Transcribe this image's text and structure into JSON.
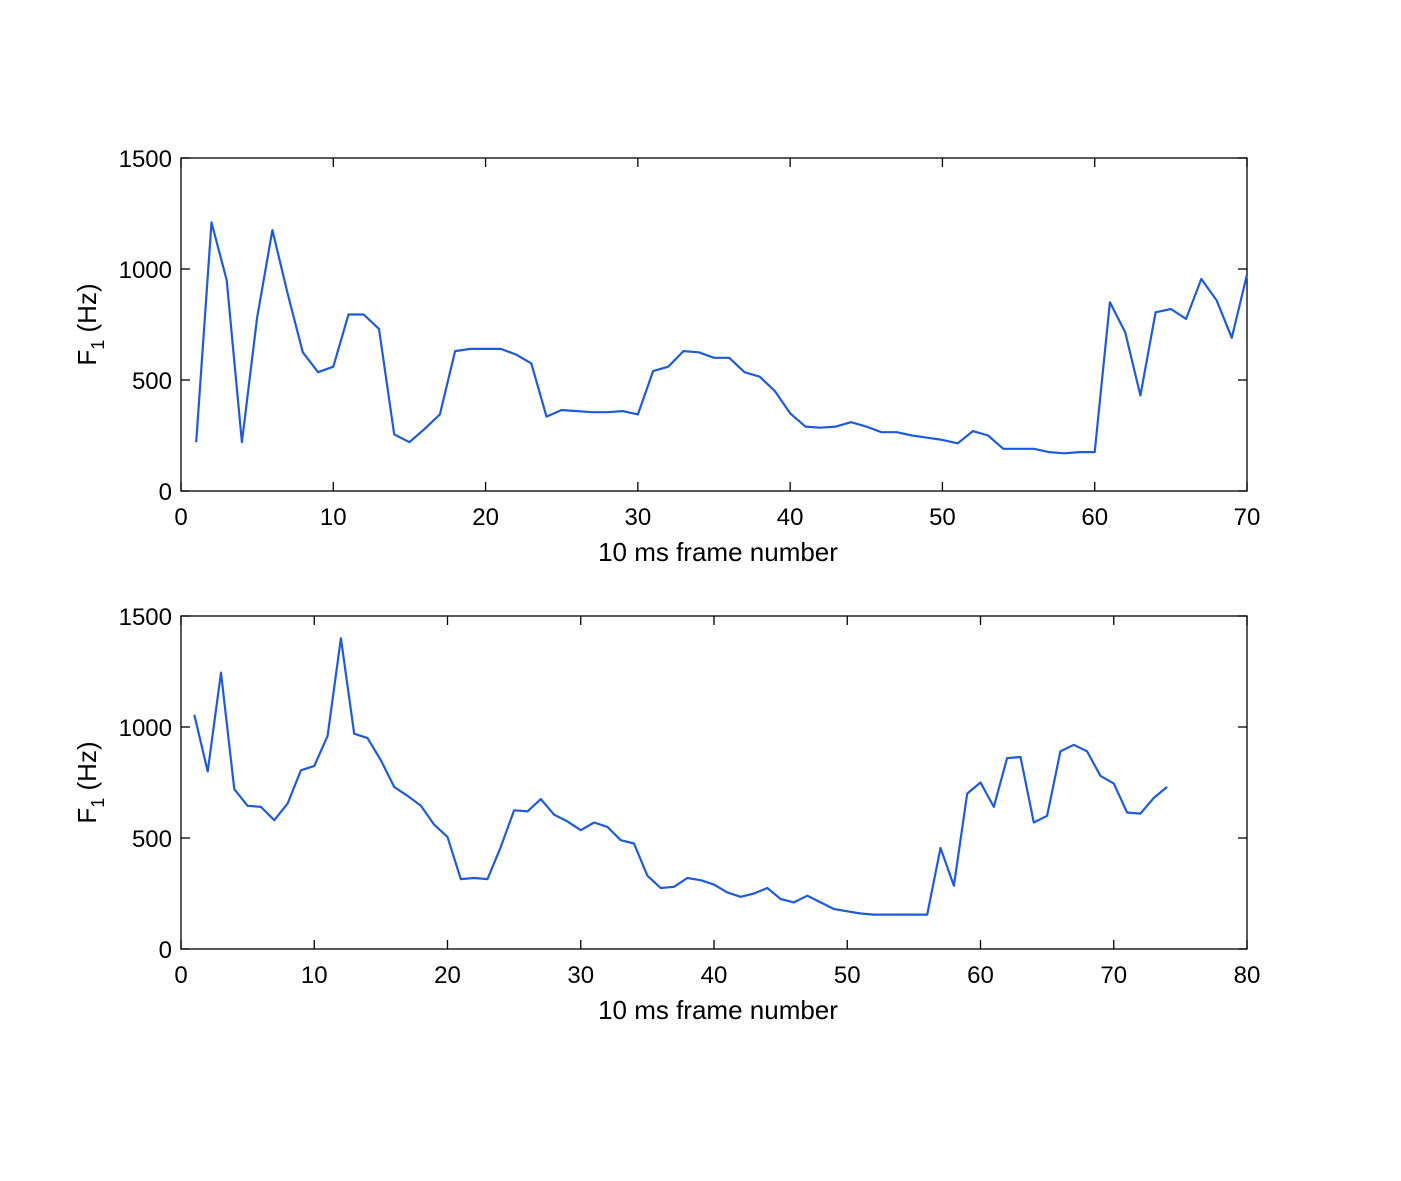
{
  "chart_data": [
    {
      "type": "line",
      "xlabel": "10 ms frame number",
      "ylabel": "F",
      "ylabel_subscript": "1",
      "ylabel_unit": "(Hz)",
      "xlim": [
        0,
        70
      ],
      "ylim": [
        0,
        1500
      ],
      "xticks": [
        0,
        10,
        20,
        30,
        40,
        50,
        60,
        70
      ],
      "yticks": [
        0,
        500,
        1000,
        1500
      ],
      "grid": false,
      "line_color": "#1f5bd6",
      "series": [
        {
          "x": [
            1,
            2,
            3,
            4,
            5,
            6,
            7,
            8,
            9,
            10,
            11,
            12,
            13,
            14,
            15,
            16,
            17,
            18,
            19,
            20,
            21,
            22,
            23,
            24,
            25,
            26,
            27,
            28,
            29,
            30,
            31,
            32,
            33,
            34,
            35,
            36,
            37,
            38,
            39,
            40,
            41,
            42,
            43,
            44,
            45,
            46,
            47,
            48,
            49,
            50,
            51,
            52,
            53,
            54,
            55,
            56,
            57,
            58,
            59,
            60,
            61,
            62,
            63,
            64,
            65,
            66,
            67,
            68,
            69,
            70
          ],
          "values": [
            220,
            1210,
            950,
            220,
            780,
            1175,
            890,
            625,
            535,
            560,
            795,
            795,
            730,
            255,
            220,
            280,
            345,
            630,
            640,
            640,
            640,
            615,
            575,
            335,
            365,
            360,
            355,
            355,
            360,
            345,
            540,
            560,
            630,
            625,
            600,
            600,
            535,
            515,
            450,
            350,
            290,
            285,
            290,
            310,
            290,
            265,
            265,
            250,
            240,
            230,
            215,
            270,
            250,
            190,
            190,
            190,
            175,
            170,
            175,
            175,
            850,
            715,
            430,
            805,
            820,
            775,
            955,
            860,
            690,
            975
          ]
        }
      ]
    },
    {
      "type": "line",
      "xlabel": "10 ms frame number",
      "ylabel": "F",
      "ylabel_subscript": "1",
      "ylabel_unit": "(Hz)",
      "xlim": [
        0,
        80
      ],
      "ylim": [
        0,
        1500
      ],
      "xticks": [
        0,
        10,
        20,
        30,
        40,
        50,
        60,
        70,
        80
      ],
      "yticks": [
        0,
        500,
        1000,
        1500
      ],
      "grid": false,
      "line_color": "#1f5bd6",
      "series": [
        {
          "x": [
            1,
            2,
            3,
            4,
            5,
            6,
            7,
            8,
            9,
            10,
            11,
            12,
            13,
            14,
            15,
            16,
            17,
            18,
            19,
            20,
            21,
            22,
            23,
            24,
            25,
            26,
            27,
            28,
            29,
            30,
            31,
            32,
            33,
            34,
            35,
            36,
            37,
            38,
            39,
            40,
            41,
            42,
            43,
            44,
            45,
            46,
            47,
            48,
            49,
            50,
            51,
            52,
            53,
            54,
            55,
            56,
            57,
            58,
            59,
            60,
            61,
            62,
            63,
            64,
            65,
            66,
            67,
            68,
            69,
            70,
            71,
            72,
            73,
            74
          ],
          "values": [
            1055,
            800,
            1245,
            720,
            645,
            640,
            580,
            655,
            805,
            825,
            960,
            1400,
            970,
            950,
            850,
            730,
            690,
            645,
            560,
            505,
            315,
            320,
            315,
            460,
            625,
            620,
            675,
            605,
            575,
            535,
            570,
            550,
            490,
            475,
            330,
            275,
            280,
            320,
            310,
            290,
            255,
            235,
            250,
            275,
            225,
            210,
            240,
            210,
            180,
            170,
            160,
            155,
            155,
            155,
            155,
            155,
            455,
            285,
            700,
            750,
            640,
            860,
            865,
            570,
            600,
            890,
            920,
            890,
            780,
            745,
            615,
            610,
            680,
            730
          ]
        }
      ]
    }
  ]
}
